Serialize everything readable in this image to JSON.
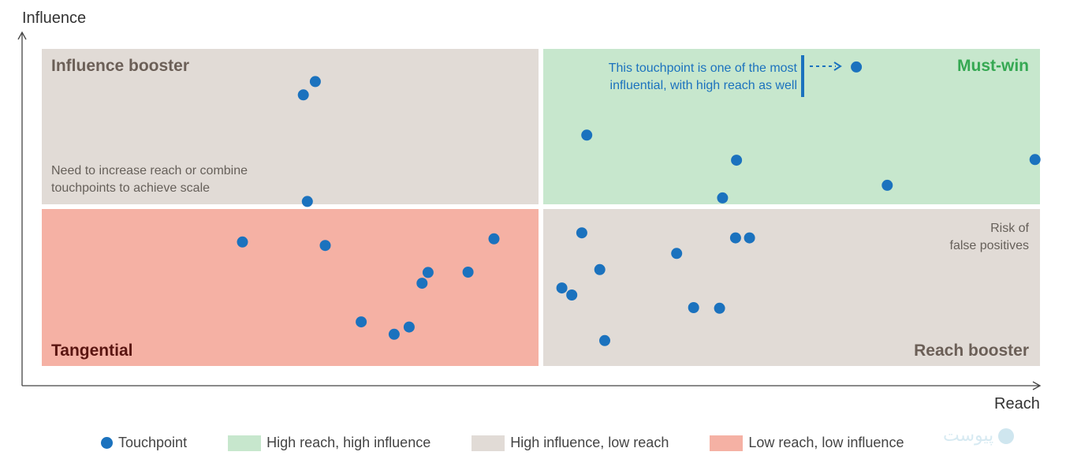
{
  "colors": {
    "point": "#1b72be",
    "must_win": "#c7e7cd",
    "influence_booster": "#e1dbd6",
    "tangential": "#f5b1a4",
    "reach_booster": "#e1dbd6",
    "must_win_title": "#35a852",
    "booster_title": "#6b5f57",
    "tangential_title": "#5a1511",
    "annotation": "#1b72be",
    "axis": "#444444"
  },
  "chart_data": {
    "type": "scatter",
    "xlabel": "Reach",
    "ylabel": "Influence",
    "xlim": [
      0,
      100
    ],
    "ylim": [
      0,
      100
    ],
    "grid": false,
    "legend_position": "bottom",
    "quadrants": [
      {
        "key": "influence_booster",
        "title": "Influence booster",
        "note": [
          "Need to increase reach or combine",
          "touchpoints to achieve scale"
        ]
      },
      {
        "key": "must_win",
        "title": "Must-win",
        "note": []
      },
      {
        "key": "tangential",
        "title": "Tangential",
        "note": []
      },
      {
        "key": "reach_booster",
        "title": "Reach booster",
        "note": [
          "Risk of",
          "false positives"
        ]
      }
    ],
    "annotation": {
      "lines": [
        "This touchpoint is one of the most",
        "influential, with high reach as well"
      ]
    },
    "series": [
      {
        "name": "Touchpoint",
        "points": [
          [
            26.2,
            85.5
          ],
          [
            27.4,
            89.7
          ],
          [
            54.6,
            72.8
          ],
          [
            69.6,
            64.9
          ],
          [
            84.7,
            57.0
          ],
          [
            99.5,
            65.1
          ],
          [
            81.6,
            94.3
          ],
          [
            26.6,
            51.9
          ],
          [
            20.1,
            39.1
          ],
          [
            28.4,
            38.0
          ],
          [
            45.3,
            40.1
          ],
          [
            38.7,
            29.5
          ],
          [
            38.1,
            26.1
          ],
          [
            42.7,
            29.6
          ],
          [
            32.0,
            13.9
          ],
          [
            35.3,
            10.0
          ],
          [
            36.8,
            12.3
          ],
          [
            52.1,
            24.6
          ],
          [
            53.1,
            22.4
          ],
          [
            54.1,
            42.0
          ],
          [
            55.9,
            30.4
          ],
          [
            63.6,
            35.5
          ],
          [
            68.2,
            53.0
          ],
          [
            69.5,
            40.4
          ],
          [
            70.9,
            40.4
          ],
          [
            67.9,
            18.2
          ],
          [
            65.3,
            18.4
          ],
          [
            56.4,
            8.0
          ]
        ]
      }
    ]
  },
  "legend": [
    {
      "label": "Touchpoint",
      "kind": "dot",
      "color": "#1b72be"
    },
    {
      "label": "High reach, high influence",
      "kind": "swatch",
      "color": "#c7e7cd"
    },
    {
      "label": "High influence, low reach",
      "kind": "swatch",
      "color": "#e1dbd6"
    },
    {
      "label": "Low reach, low influence",
      "kind": "swatch",
      "color": "#f5b1a4"
    }
  ],
  "watermark": "پیوست"
}
